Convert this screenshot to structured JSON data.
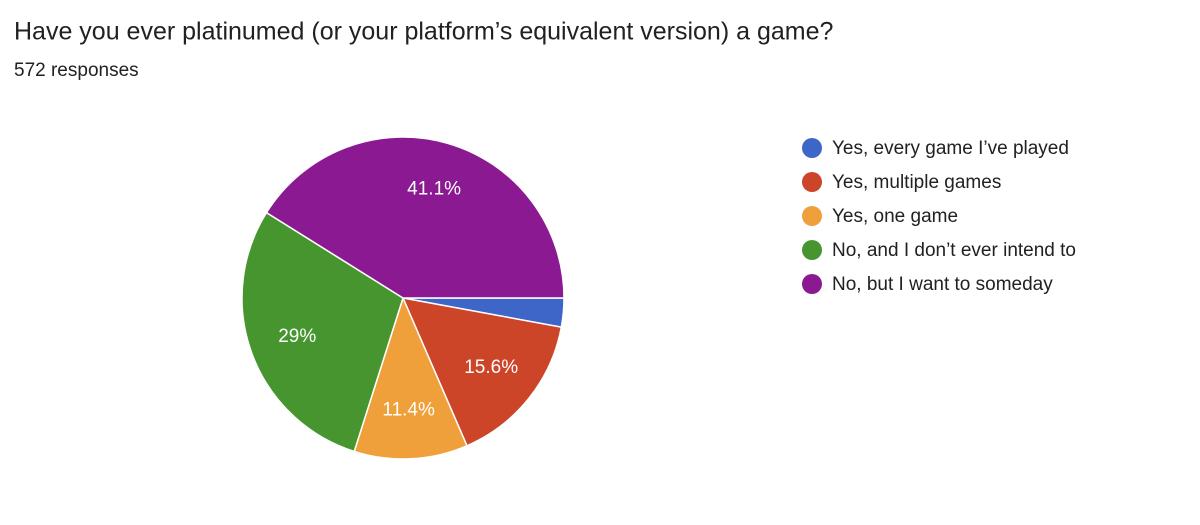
{
  "chart_data": {
    "type": "pie",
    "title": "Have you ever platinumed (or your platform’s equivalent version) a game?",
    "subtitle": "572 responses",
    "categories": [
      "Yes, every game I’ve played",
      "Yes, multiple games",
      "Yes, one game",
      "No, and I don’t ever intend to",
      "No, but I want to someday"
    ],
    "values": [
      2.9,
      15.6,
      11.4,
      29,
      41.1
    ],
    "value_labels": [
      null,
      "15.6%",
      "11.4%",
      "29%",
      "41.1%"
    ],
    "colors": [
      "#3e66c8",
      "#cd4529",
      "#f0a03a",
      "#47952f",
      "#8b1a92"
    ],
    "legend": "right"
  }
}
